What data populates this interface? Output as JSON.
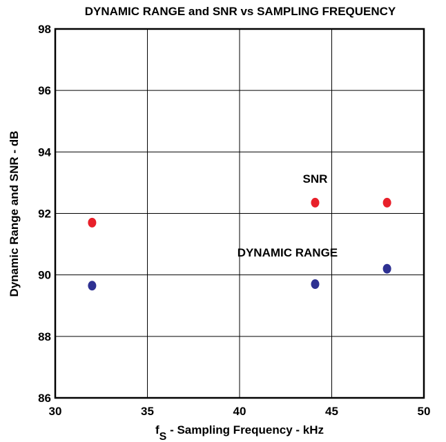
{
  "chart_data": {
    "type": "scatter",
    "title": "DYNAMIC RANGE and SNR vs SAMPLING FREQUENCY",
    "xlabel_main": "f",
    "xlabel_sub": "S",
    "xlabel_rest": " - Sampling Frequency - kHz",
    "ylabel": "Dynamic Range and SNR - dB",
    "xlim": [
      30,
      50
    ],
    "ylim": [
      86,
      98
    ],
    "xticks": [
      30,
      35,
      40,
      45,
      50
    ],
    "yticks": [
      86,
      88,
      90,
      92,
      94,
      96,
      98
    ],
    "grid": true,
    "series": [
      {
        "name": "SNR",
        "color": "#e8202a",
        "x": [
          32,
          44.1,
          48
        ],
        "y": [
          91.7,
          92.35,
          92.35
        ]
      },
      {
        "name": "DYNAMIC RANGE",
        "color": "#2e3192",
        "x": [
          32,
          44.1,
          48
        ],
        "y": [
          89.65,
          89.7,
          90.2
        ]
      }
    ],
    "annotations": [
      {
        "text": "SNR",
        "x": 44.1,
        "y": 93.0
      },
      {
        "text": "DYNAMIC RANGE",
        "x": 42.6,
        "y": 90.6
      }
    ]
  }
}
